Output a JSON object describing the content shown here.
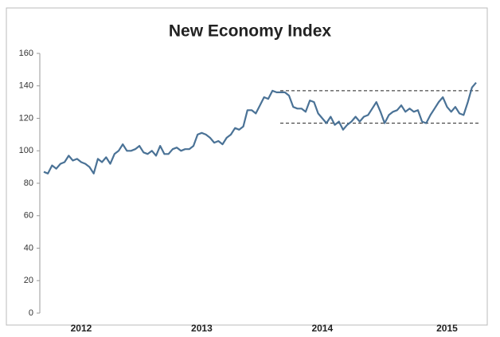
{
  "chart_data": {
    "type": "line",
    "title": "New Economy Index",
    "categories": [
      null,
      null,
      null,
      null,
      null,
      null,
      null,
      null,
      null,
      "2012",
      null,
      null,
      null,
      null,
      null,
      null,
      null,
      null,
      null,
      null,
      null,
      null,
      null,
      null,
      null,
      null,
      null,
      null,
      null,
      null,
      null,
      null,
      null,
      null,
      null,
      null,
      null,
      null,
      "2013",
      null,
      null,
      null,
      null,
      null,
      null,
      null,
      null,
      null,
      null,
      null,
      null,
      null,
      null,
      null,
      null,
      null,
      null,
      null,
      null,
      null,
      null,
      null,
      null,
      null,
      null,
      null,
      null,
      "2014",
      null,
      null,
      null,
      null,
      null,
      null,
      null,
      null,
      null,
      null,
      null,
      null,
      null,
      null,
      null,
      null,
      null,
      null,
      null,
      null,
      null,
      null,
      null,
      null,
      null,
      null,
      null,
      null,
      null,
      "2015",
      null,
      null,
      null,
      null,
      null,
      null,
      null
    ],
    "series": [
      {
        "color": "#4a7296",
        "values": [
          87,
          86,
          91,
          89,
          92,
          93,
          97,
          94,
          95,
          93,
          92,
          90,
          86,
          95,
          93,
          96,
          92,
          98,
          100,
          104,
          100,
          100,
          101,
          103,
          99,
          98,
          100,
          97,
          103,
          98,
          98,
          101,
          102,
          100,
          101,
          101,
          103,
          110,
          111,
          110,
          108,
          105,
          106,
          104,
          108,
          110,
          114,
          113,
          115,
          125,
          125,
          123,
          128,
          133,
          132,
          137,
          136,
          136,
          136,
          134,
          127,
          126,
          126,
          124,
          131,
          130,
          123,
          120,
          117,
          121,
          116,
          118,
          113,
          116,
          118,
          121,
          118,
          121,
          122,
          126,
          130,
          124,
          117,
          122,
          124,
          125,
          128,
          124,
          126,
          124,
          125,
          118,
          117,
          122,
          126,
          130,
          133,
          127,
          124,
          127,
          123,
          122,
          130,
          139,
          142
        ]
      }
    ],
    "reference_lines": [
      137,
      117
    ],
    "ylim": [
      0,
      160
    ],
    "yticks": [
      0,
      20,
      40,
      60,
      80,
      100,
      120,
      140,
      160
    ]
  }
}
